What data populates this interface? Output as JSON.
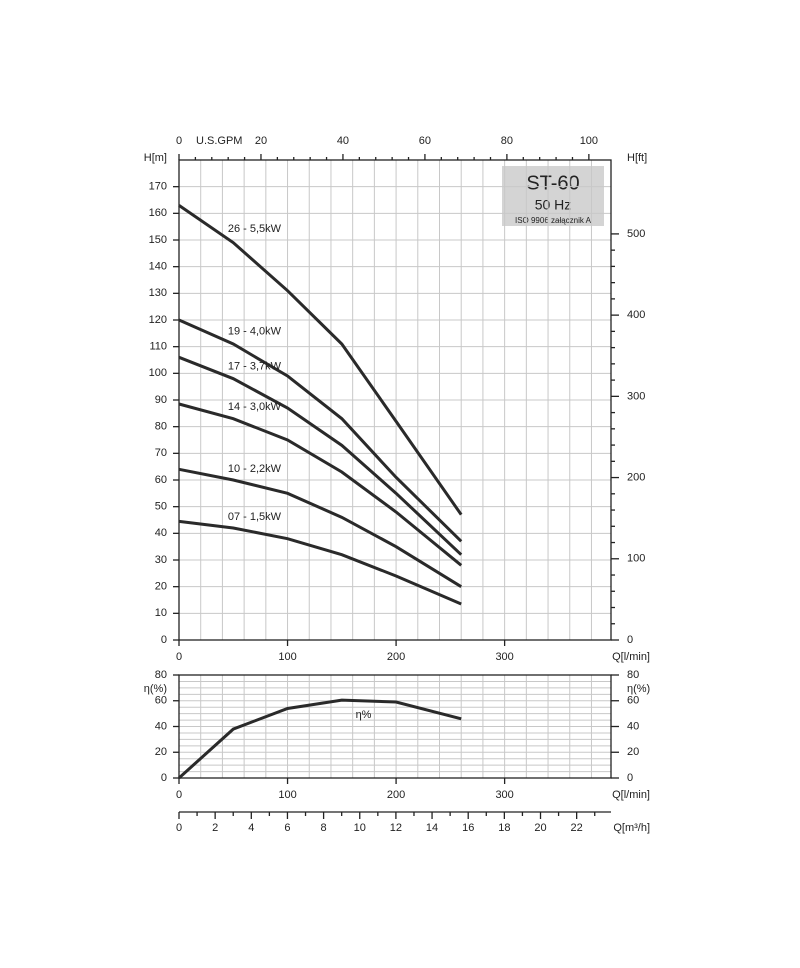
{
  "chart_data": [
    {
      "type": "line",
      "title": "ST-60",
      "subtitle": "50 Hz",
      "note": "ISO 9906 załącznik A",
      "x": [
        0,
        50,
        100,
        150,
        200,
        260
      ],
      "xlim": [
        0,
        398
      ],
      "xticks": [
        0,
        100,
        200,
        300
      ],
      "xlabel": "Q[l/min]",
      "ylabel": "H[m]",
      "ylim": [
        0,
        180
      ],
      "yticks": [
        0,
        10,
        20,
        30,
        40,
        50,
        60,
        70,
        80,
        90,
        100,
        110,
        120,
        130,
        140,
        150,
        160,
        170
      ],
      "y2label": "H[ft]",
      "y2lim": [
        0,
        591
      ],
      "y2ticks": [
        0,
        100,
        200,
        300,
        400,
        500
      ],
      "x2label": "U.S.GPM",
      "x2lim": [
        0,
        105.4
      ],
      "x2ticks": [
        0,
        20,
        40,
        60,
        80,
        100
      ],
      "grid": true,
      "series": [
        {
          "name": "26 - 5,5kW",
          "color": "#2a2a2a",
          "values": [
            163,
            149,
            131,
            111,
            82,
            47
          ]
        },
        {
          "name": "19 - 4,0kW",
          "color": "#2a2a2a",
          "values": [
            120,
            111,
            99,
            83,
            61,
            37
          ]
        },
        {
          "name": "17 - 3,7kW",
          "color": "#2a2a2a",
          "values": [
            106,
            98,
            87,
            73,
            55,
            32
          ]
        },
        {
          "name": "14 - 3,0kW",
          "color": "#2a2a2a",
          "values": [
            88.5,
            83,
            75,
            63,
            48,
            28
          ]
        },
        {
          "name": "10 - 2,2kW",
          "color": "#2a2a2a",
          "values": [
            64,
            60,
            55,
            46,
            35,
            20
          ]
        },
        {
          "name": "07 - 1,5kW",
          "color": "#2a2a2a",
          "values": [
            44.5,
            42,
            38,
            32,
            24,
            13.5
          ]
        }
      ]
    },
    {
      "type": "line",
      "x": [
        0,
        50,
        100,
        150,
        200,
        260
      ],
      "xlim": [
        0,
        398
      ],
      "xticks": [
        0,
        100,
        200,
        300
      ],
      "xlabel": "Q[l/min]",
      "ylabel": "η(%)",
      "ylim": [
        0,
        80
      ],
      "yticks": [
        0,
        20,
        40,
        60,
        80
      ],
      "y2label": "η(%)",
      "y2lim": [
        0,
        80
      ],
      "y2ticks": [
        0,
        20,
        40,
        60,
        80
      ],
      "grid": true,
      "series": [
        {
          "name": "η%",
          "color": "#2a2a2a",
          "values": [
            0,
            38,
            54,
            60.5,
            59,
            46
          ]
        }
      ]
    },
    {
      "type": "axis",
      "xlabel": "Q[m³/h]",
      "xlim": [
        0,
        23.9
      ],
      "xticks": [
        0,
        2,
        4,
        6,
        8,
        10,
        12,
        14,
        16,
        18,
        20,
        22
      ]
    }
  ]
}
